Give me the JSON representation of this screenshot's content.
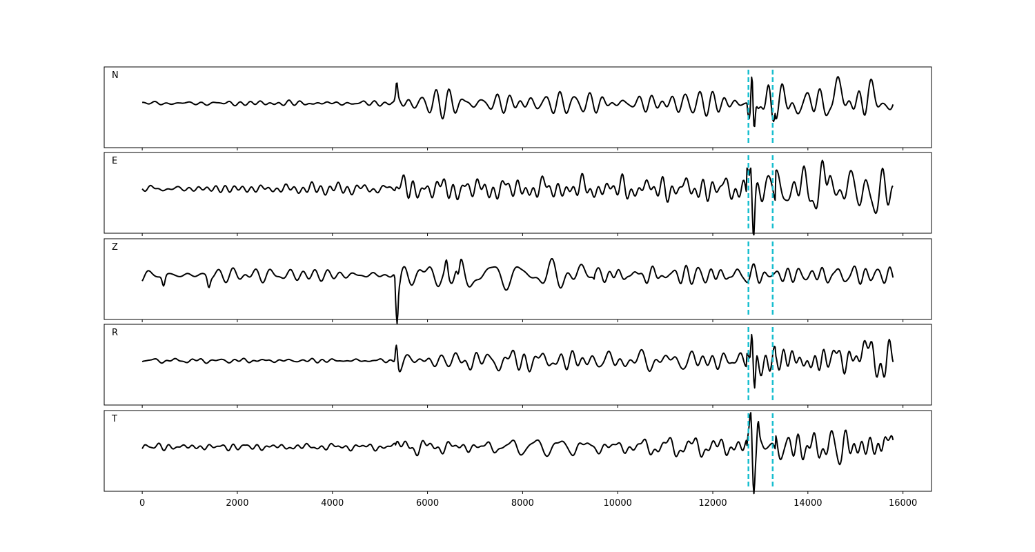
{
  "chart_data": {
    "type": "line",
    "description_free": true,
    "x_range": [
      -800,
      16600
    ],
    "x_ticks": [
      0,
      2000,
      4000,
      6000,
      8000,
      10000,
      12000,
      14000,
      16000
    ],
    "x_tick_labels": [
      "0",
      "2000",
      "4000",
      "6000",
      "8000",
      "10000",
      "12000",
      "14000",
      "16000"
    ],
    "grid": false,
    "line_color": "#000000",
    "marker_color": "#17becf",
    "markers_x": [
      12750,
      13260
    ],
    "channels": [
      {
        "name": "N",
        "x_start": 0,
        "x_end": 15800,
        "events": [
          [
            5350,
            0.55,
            30
          ],
          [
            12870,
            -1.0,
            30
          ],
          [
            12820,
            0.85,
            25
          ],
          [
            14600,
            0.55,
            80
          ],
          [
            15200,
            0.3,
            120
          ]
        ],
        "segments": [
          {
            "from": 0,
            "to": 5300,
            "amp": 0.05,
            "seed": 1
          },
          {
            "from": 5300,
            "to": 12700,
            "amp": 0.22,
            "seed": 2
          },
          {
            "from": 12700,
            "to": 13300,
            "amp": 0.35,
            "seed": 3
          },
          {
            "from": 13300,
            "to": 15800,
            "amp": 0.4,
            "seed": 4
          }
        ]
      },
      {
        "name": "E",
        "x_start": 0,
        "x_end": 15800,
        "events": [
          [
            12860,
            -0.95,
            30
          ],
          [
            12800,
            0.85,
            25
          ],
          [
            15400,
            -0.5,
            90
          ],
          [
            14450,
            0.5,
            60
          ]
        ],
        "segments": [
          {
            "from": 0,
            "to": 5300,
            "amp": 0.1,
            "seed": 5
          },
          {
            "from": 5300,
            "to": 12700,
            "amp": 0.25,
            "seed": 6
          },
          {
            "from": 12700,
            "to": 13300,
            "amp": 0.4,
            "seed": 7
          },
          {
            "from": 13300,
            "to": 15800,
            "amp": 0.45,
            "seed": 8
          }
        ]
      },
      {
        "name": "Z",
        "x_start": 0,
        "x_end": 15800,
        "events": [
          [
            5370,
            -1.3,
            40
          ],
          [
            5390,
            0.6,
            25
          ],
          [
            6400,
            0.4,
            40
          ],
          [
            6650,
            -0.45,
            40
          ],
          [
            450,
            -0.3,
            40
          ],
          [
            1400,
            -0.3,
            40
          ]
        ],
        "segments": [
          {
            "from": 0,
            "to": 5300,
            "amp": 0.14,
            "seed": 9
          },
          {
            "from": 5300,
            "to": 9500,
            "amp": 0.32,
            "seed": 10
          },
          {
            "from": 9500,
            "to": 15800,
            "amp": 0.2,
            "seed": 11
          }
        ]
      },
      {
        "name": "R",
        "x_start": 0,
        "x_end": 15800,
        "events": [
          [
            5350,
            0.55,
            30
          ],
          [
            12880,
            -1.0,
            30
          ],
          [
            12820,
            0.85,
            25
          ],
          [
            14600,
            0.6,
            80
          ],
          [
            14500,
            -0.45,
            60
          ],
          [
            15200,
            0.4,
            120
          ]
        ],
        "segments": [
          {
            "from": 0,
            "to": 5300,
            "amp": 0.05,
            "seed": 12
          },
          {
            "from": 5300,
            "to": 12700,
            "amp": 0.22,
            "seed": 13
          },
          {
            "from": 12700,
            "to": 13300,
            "amp": 0.35,
            "seed": 14
          },
          {
            "from": 13300,
            "to": 15800,
            "amp": 0.4,
            "seed": 15
          }
        ]
      },
      {
        "name": "T",
        "x_start": 0,
        "x_end": 15800,
        "events": [
          [
            12860,
            -1.0,
            30
          ],
          [
            12800,
            0.65,
            25
          ],
          [
            12950,
            0.7,
            30
          ],
          [
            15600,
            0.6,
            70
          ],
          [
            15550,
            -0.4,
            60
          ]
        ],
        "segments": [
          {
            "from": 0,
            "to": 5300,
            "amp": 0.08,
            "seed": 16
          },
          {
            "from": 5300,
            "to": 12700,
            "amp": 0.2,
            "seed": 17
          },
          {
            "from": 12700,
            "to": 13300,
            "amp": 0.4,
            "seed": 18
          },
          {
            "from": 13300,
            "to": 15800,
            "amp": 0.35,
            "seed": 19
          }
        ]
      }
    ]
  }
}
